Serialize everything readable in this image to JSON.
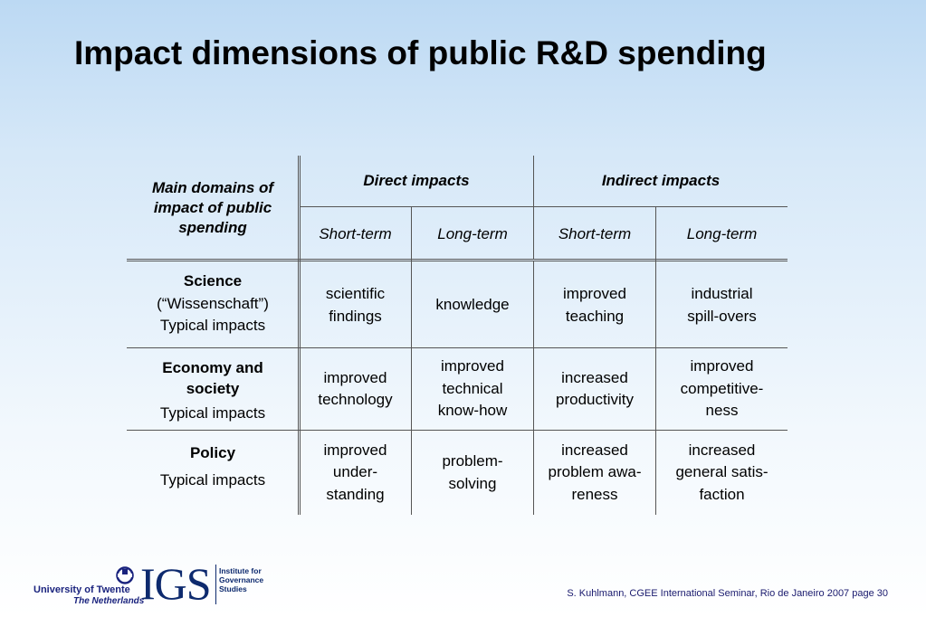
{
  "title": "Impact dimensions of public R&D spending",
  "table": {
    "corner_header": "Main domains of impact of public spending",
    "group_headers": [
      "Direct impacts",
      "Indirect impacts"
    ],
    "sub_headers": [
      "Short-term",
      "Long-term",
      "Short-term",
      "Long-term"
    ],
    "rows": [
      {
        "name": "Science",
        "subname": "(“Wissenschaft”)",
        "typical": "Typical impacts",
        "cells": [
          "scientific\nfindings",
          "knowledge",
          "improved\nteaching",
          "industrial\nspill-overs"
        ]
      },
      {
        "name": "Economy and society",
        "subname": "",
        "typical": "Typical impacts",
        "cells": [
          "improved\ntechnology",
          "improved\ntechnical\nknow-how",
          "increased\nproductivity",
          "improved\ncompetitive-\nness"
        ]
      },
      {
        "name": "Policy",
        "subname": "",
        "typical": "Typical impacts",
        "cells": [
          "improved\nunder-\nstanding",
          "problem-\nsolving",
          "increased\nproblem awa-\nreness",
          "increased\ngeneral satis-\nfaction"
        ]
      }
    ]
  },
  "footer": {
    "citation": "S. Kuhlmann, CGEE International Seminar, Rio de Janeiro 2007  page 30"
  },
  "logos": {
    "ut_line1": "University of Twente",
    "ut_line2": "The Netherlands",
    "igs_letters": "IGS",
    "igs_sub": "Institute for\nGovernance\nStudies"
  },
  "colors": {
    "background_top": "#bcd9f3",
    "background_bottom": "#ffffff",
    "logo_blue": "#0d2a6e",
    "footer_text": "#1a1a6e"
  }
}
